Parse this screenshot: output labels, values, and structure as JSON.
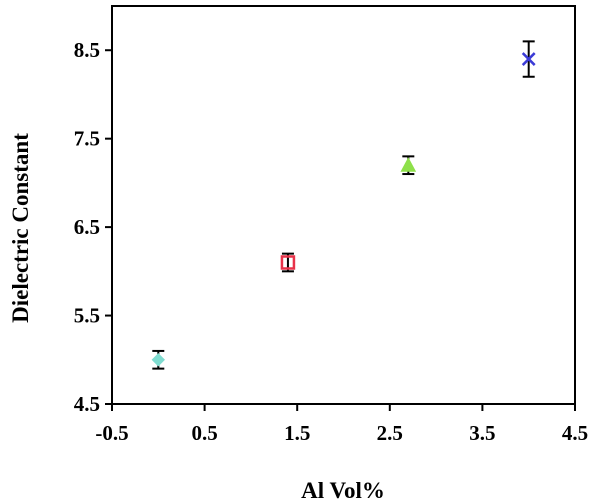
{
  "chart_data": {
    "type": "scatter",
    "title": "",
    "xlabel": "Al Vol%",
    "ylabel": "Dielectric Constant",
    "xlim": [
      -0.5,
      4.5
    ],
    "ylim": [
      4.5,
      9.0
    ],
    "x_ticks": [
      -0.5,
      0.5,
      1.5,
      2.5,
      3.5,
      4.5
    ],
    "y_ticks": [
      4.5,
      5.5,
      6.5,
      7.5,
      8.5
    ],
    "x_tick_labels": [
      "-0.5",
      "0.5",
      "1.5",
      "2.5",
      "3.5",
      "4.5"
    ],
    "y_tick_labels": [
      "4.5",
      "5.5",
      "6.5",
      "7.5",
      "8.5"
    ],
    "grid": false,
    "legend": "none",
    "points": [
      {
        "x": 0.0,
        "y": 5.0,
        "error": 0.1,
        "marker": "diamond",
        "color": "#7fdcd0"
      },
      {
        "x": 1.4,
        "y": 6.1,
        "error": 0.1,
        "marker": "square",
        "color": "#e8334a"
      },
      {
        "x": 2.7,
        "y": 7.2,
        "error": 0.1,
        "marker": "triangle",
        "color": "#8ee04a"
      },
      {
        "x": 4.0,
        "y": 8.4,
        "error": 0.2,
        "marker": "x",
        "color": "#3b3bd6"
      }
    ]
  }
}
